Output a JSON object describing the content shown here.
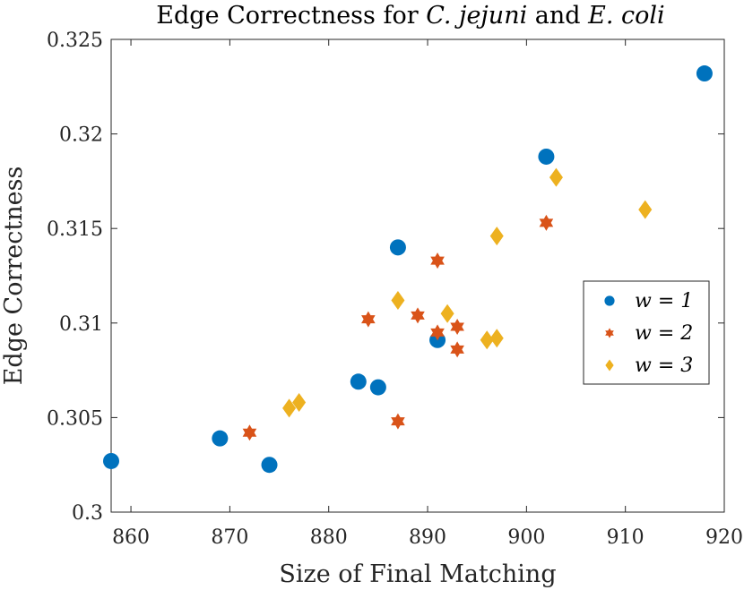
{
  "chart_data": {
    "type": "scatter",
    "title_parts": [
      {
        "text": "Edge Correctness for ",
        "italic": false
      },
      {
        "text": "C. jejuni",
        "italic": true
      },
      {
        "text": " and ",
        "italic": false
      },
      {
        "text": "E. coli",
        "italic": true
      }
    ],
    "xlabel": "Size of Final Matching",
    "ylabel": "Edge Correctness",
    "xlim": [
      858,
      920
    ],
    "ylim": [
      0.3,
      0.325
    ],
    "xticks": [
      860,
      870,
      880,
      890,
      900,
      910,
      920
    ],
    "xtick_labels": [
      "860",
      "870",
      "880",
      "890",
      "900",
      "910",
      "920"
    ],
    "yticks": [
      0.3,
      0.305,
      0.31,
      0.315,
      0.32,
      0.325
    ],
    "ytick_labels": [
      "0.3",
      "0.305",
      "0.31",
      "0.315",
      "0.32",
      "0.325"
    ],
    "legend_position": "right",
    "series": [
      {
        "name": "w = 1",
        "marker": "circle",
        "color": "#0072BD",
        "points": [
          [
            858,
            0.3027
          ],
          [
            869,
            0.3039
          ],
          [
            874,
            0.3025
          ],
          [
            883,
            0.3069
          ],
          [
            885,
            0.3066
          ],
          [
            887,
            0.314
          ],
          [
            891,
            0.3091
          ],
          [
            902,
            0.3188
          ],
          [
            918,
            0.3232
          ]
        ]
      },
      {
        "name": "w = 2",
        "marker": "hexagram",
        "color": "#D95319",
        "points": [
          [
            872,
            0.3042
          ],
          [
            884,
            0.3102
          ],
          [
            887,
            0.3048
          ],
          [
            889,
            0.3104
          ],
          [
            891,
            0.3133
          ],
          [
            891,
            0.3095
          ],
          [
            893,
            0.3098
          ],
          [
            893,
            0.3086
          ],
          [
            902,
            0.3153
          ]
        ]
      },
      {
        "name": "w = 3",
        "marker": "diamond",
        "color": "#EDB120",
        "points": [
          [
            876,
            0.3055
          ],
          [
            877,
            0.3058
          ],
          [
            887,
            0.3112
          ],
          [
            892,
            0.3105
          ],
          [
            896,
            0.3091
          ],
          [
            897,
            0.3092
          ],
          [
            897,
            0.3146
          ],
          [
            903,
            0.3177
          ],
          [
            912,
            0.316
          ]
        ]
      }
    ]
  }
}
